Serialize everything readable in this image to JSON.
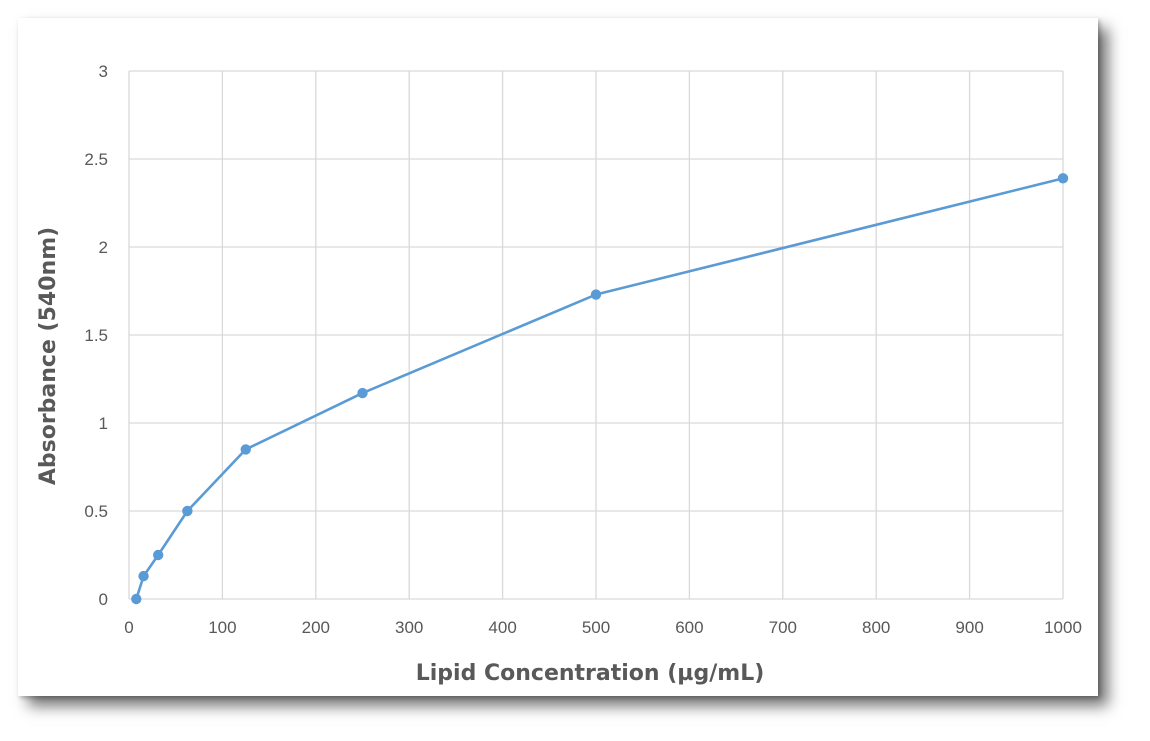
{
  "chart_data": {
    "type": "line",
    "title": "",
    "xlabel": "Lipid Concentration (µg/mL)",
    "ylabel": "Absorbance (540nm)",
    "xlim": [
      0,
      1000
    ],
    "ylim": [
      0,
      3
    ],
    "xticks": [
      0,
      100,
      200,
      300,
      400,
      500,
      600,
      700,
      800,
      900,
      1000
    ],
    "yticks": [
      0,
      0.5,
      1,
      1.5,
      2,
      2.5,
      3
    ],
    "xtick_labels": [
      "0",
      "100",
      "200",
      "300",
      "400",
      "500",
      "600",
      "700",
      "800",
      "900",
      "1000"
    ],
    "ytick_labels": [
      "0",
      "0.5",
      "1",
      "1.5",
      "2",
      "2.5",
      "3"
    ],
    "grid": true,
    "legend": "none",
    "series": [
      {
        "color": "#5b9bd5",
        "marker": "circle",
        "x": [
          7.8,
          15.6,
          31.25,
          62.5,
          125,
          250,
          500,
          1000
        ],
        "y": [
          0.0,
          0.13,
          0.25,
          0.5,
          0.85,
          1.17,
          1.73,
          2.39
        ]
      }
    ],
    "colors": {
      "grid": "#d9d9d9",
      "axis": "#d9d9d9",
      "text": "#595959"
    }
  }
}
